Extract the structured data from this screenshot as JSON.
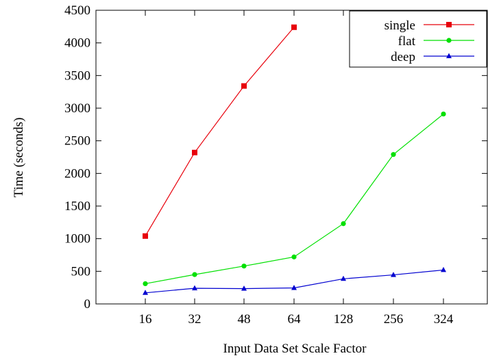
{
  "chart_data": {
    "type": "line",
    "categories": [
      "16",
      "32",
      "48",
      "64",
      "128",
      "256",
      "324"
    ],
    "xlabel": "Input Data Set Scale Factor",
    "ylabel": "Time (seconds)",
    "ylim": [
      0,
      4500
    ],
    "yticks": [
      0,
      500,
      1000,
      1500,
      2000,
      2500,
      3000,
      3500,
      4000,
      4500
    ],
    "grid": false,
    "legend_position": "top-right",
    "series": [
      {
        "name": "single",
        "color": "#e8000b",
        "marker": "square",
        "values": [
          1040,
          2320,
          3340,
          4240,
          null,
          null,
          null
        ]
      },
      {
        "name": "flat",
        "color": "#00e000",
        "marker": "circle",
        "values": [
          310,
          450,
          580,
          720,
          1230,
          2290,
          2910
        ]
      },
      {
        "name": "deep",
        "color": "#0000d0",
        "marker": "triangle",
        "values": [
          170,
          240,
          235,
          245,
          385,
          445,
          520
        ]
      }
    ]
  }
}
